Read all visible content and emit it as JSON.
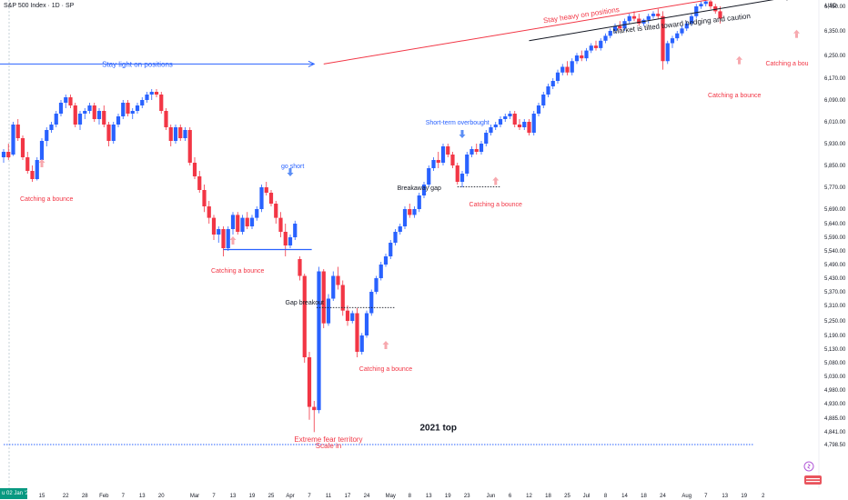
{
  "header": {
    "title": "S&P 500 Index · 1D · SP",
    "currency": "USD",
    "date_badge": "u 02 Jan '25"
  },
  "colors": {
    "up": "#2962ff",
    "down": "#f23645",
    "annot_red": "#f23645",
    "annot_blue": "#2962ff",
    "bounce_arrow": "#f7a8ae",
    "dot_line": "#2962ff"
  },
  "chart_data": {
    "type": "candlestick",
    "title": "S&P 500 Index · 1D · SP",
    "y_ticks": [
      6450,
      6350,
      6250,
      6170,
      6090,
      6010,
      5930,
      5850,
      5770,
      5690,
      5640,
      5590,
      5540,
      5490,
      5430,
      5370,
      5310,
      5250,
      5190,
      5130,
      5080,
      5030,
      4980,
      4930,
      4885,
      4841,
      4798.5
    ],
    "y_tick_labels": [
      "6,450.00",
      "6,350.00",
      "6,250.00",
      "6,170.00",
      "6,090.00",
      "6,010.00",
      "5,930.00",
      "5,850.00",
      "5,770.00",
      "5,690.00",
      "5,640.00",
      "5,590.00",
      "5,540.00",
      "5,490.00",
      "5,430.00",
      "5,370.00",
      "5,310.00",
      "5,250.00",
      "5,190.00",
      "5,130.00",
      "5,080.00",
      "5,030.00",
      "4,980.00",
      "4,930.00",
      "4,885.00",
      "4,841.00",
      "4,798.50"
    ],
    "x_ticks": [
      {
        "i": 3,
        "label": "8"
      },
      {
        "i": 8,
        "label": "15"
      },
      {
        "i": 13,
        "label": "22"
      },
      {
        "i": 17,
        "label": "28"
      },
      {
        "i": 21,
        "label": "Feb"
      },
      {
        "i": 25,
        "label": "7"
      },
      {
        "i": 29,
        "label": "13"
      },
      {
        "i": 33,
        "label": "20"
      },
      {
        "i": 40,
        "label": "Mar"
      },
      {
        "i": 44,
        "label": "7"
      },
      {
        "i": 48,
        "label": "13"
      },
      {
        "i": 52,
        "label": "19"
      },
      {
        "i": 56,
        "label": "25"
      },
      {
        "i": 60,
        "label": "Apr"
      },
      {
        "i": 64,
        "label": "7"
      },
      {
        "i": 68,
        "label": "11"
      },
      {
        "i": 72,
        "label": "17"
      },
      {
        "i": 76,
        "label": "24"
      },
      {
        "i": 81,
        "label": "May"
      },
      {
        "i": 85,
        "label": "8"
      },
      {
        "i": 89,
        "label": "13"
      },
      {
        "i": 93,
        "label": "19"
      },
      {
        "i": 97,
        "label": "23"
      },
      {
        "i": 102,
        "label": "Jun"
      },
      {
        "i": 106,
        "label": "6"
      },
      {
        "i": 110,
        "label": "12"
      },
      {
        "i": 114,
        "label": "18"
      },
      {
        "i": 118,
        "label": "25"
      },
      {
        "i": 122,
        "label": "Jul"
      },
      {
        "i": 126,
        "label": "8"
      },
      {
        "i": 130,
        "label": "14"
      },
      {
        "i": 134,
        "label": "18"
      },
      {
        "i": 138,
        "label": "24"
      },
      {
        "i": 143,
        "label": "Aug"
      },
      {
        "i": 147,
        "label": "7"
      },
      {
        "i": 151,
        "label": "13"
      },
      {
        "i": 155,
        "label": "19"
      },
      {
        "i": 159,
        "label": "2"
      }
    ],
    "candles": [
      [
        5880,
        5910,
        5860,
        5900
      ],
      [
        5900,
        5930,
        5870,
        5880
      ],
      [
        5890,
        6010,
        5885,
        6000
      ],
      [
        6000,
        6020,
        5940,
        5950
      ],
      [
        5950,
        5960,
        5870,
        5880
      ],
      [
        5880,
        5900,
        5820,
        5830
      ],
      [
        5830,
        5850,
        5790,
        5800
      ],
      [
        5800,
        5880,
        5795,
        5870
      ],
      [
        5870,
        5950,
        5860,
        5940
      ],
      [
        5940,
        5990,
        5920,
        5980
      ],
      [
        5980,
        6010,
        5970,
        6000
      ],
      [
        6000,
        6050,
        5990,
        6040
      ],
      [
        6040,
        6090,
        6030,
        6080
      ],
      [
        6080,
        6110,
        6060,
        6100
      ],
      [
        6100,
        6110,
        6060,
        6070
      ],
      [
        6070,
        6080,
        5990,
        6000
      ],
      [
        6000,
        6050,
        5980,
        6040
      ],
      [
        6040,
        6060,
        6020,
        6050
      ],
      [
        6050,
        6080,
        6040,
        6070
      ],
      [
        6070,
        6080,
        6010,
        6020
      ],
      [
        6020,
        6060,
        6000,
        6050
      ],
      [
        6050,
        6070,
        5990,
        6000
      ],
      [
        6000,
        6010,
        5920,
        5940
      ],
      [
        5940,
        6010,
        5930,
        6000
      ],
      [
        6000,
        6040,
        5990,
        6030
      ],
      [
        6030,
        6090,
        6020,
        6080
      ],
      [
        6080,
        6090,
        6030,
        6040
      ],
      [
        6040,
        6060,
        6020,
        6050
      ],
      [
        6050,
        6080,
        6040,
        6070
      ],
      [
        6070,
        6100,
        6060,
        6090
      ],
      [
        6090,
        6120,
        6080,
        6110
      ],
      [
        6110,
        6130,
        6090,
        6120
      ],
      [
        6120,
        6130,
        6100,
        6110
      ],
      [
        6110,
        6120,
        6040,
        6050
      ],
      [
        6050,
        6060,
        5980,
        5990
      ],
      [
        5990,
        6000,
        5920,
        5940
      ],
      [
        5940,
        6000,
        5930,
        5990
      ],
      [
        5990,
        6000,
        5940,
        5950
      ],
      [
        5950,
        5990,
        5940,
        5980
      ],
      [
        5980,
        5990,
        5850,
        5860
      ],
      [
        5860,
        5880,
        5800,
        5810
      ],
      [
        5810,
        5830,
        5750,
        5760
      ],
      [
        5760,
        5780,
        5680,
        5700
      ],
      [
        5700,
        5720,
        5640,
        5660
      ],
      [
        5660,
        5670,
        5580,
        5600
      ],
      [
        5600,
        5630,
        5570,
        5620
      ],
      [
        5620,
        5630,
        5520,
        5550
      ],
      [
        5550,
        5630,
        5540,
        5620
      ],
      [
        5620,
        5680,
        5600,
        5670
      ],
      [
        5670,
        5680,
        5600,
        5610
      ],
      [
        5610,
        5670,
        5600,
        5660
      ],
      [
        5660,
        5680,
        5620,
        5630
      ],
      [
        5630,
        5670,
        5620,
        5660
      ],
      [
        5660,
        5700,
        5650,
        5690
      ],
      [
        5690,
        5780,
        5680,
        5770
      ],
      [
        5770,
        5790,
        5740,
        5750
      ],
      [
        5750,
        5760,
        5700,
        5710
      ],
      [
        5710,
        5720,
        5640,
        5660
      ],
      [
        5660,
        5680,
        5590,
        5610
      ],
      [
        5610,
        5640,
        5520,
        5560
      ],
      [
        5560,
        5600,
        5550,
        5590
      ],
      [
        5590,
        5650,
        5580,
        5640
      ],
      [
        5510,
        5520,
        5420,
        5440
      ],
      [
        5440,
        5450,
        5080,
        5100
      ],
      [
        5100,
        5120,
        4880,
        4920
      ],
      [
        4920,
        4940,
        4840,
        4910
      ],
      [
        4910,
        5480,
        4900,
        5460
      ],
      [
        5460,
        5470,
        5220,
        5240
      ],
      [
        5240,
        5360,
        5230,
        5340
      ],
      [
        5340,
        5460,
        5330,
        5440
      ],
      [
        5440,
        5480,
        5380,
        5400
      ],
      [
        5400,
        5420,
        5270,
        5290
      ],
      [
        5290,
        5310,
        5230,
        5250
      ],
      [
        5250,
        5290,
        5240,
        5280
      ],
      [
        5280,
        5300,
        5100,
        5120
      ],
      [
        5120,
        5200,
        5110,
        5190
      ],
      [
        5190,
        5290,
        5180,
        5280
      ],
      [
        5280,
        5380,
        5270,
        5370
      ],
      [
        5370,
        5440,
        5360,
        5430
      ],
      [
        5430,
        5500,
        5420,
        5490
      ],
      [
        5490,
        5530,
        5480,
        5520
      ],
      [
        5520,
        5580,
        5510,
        5570
      ],
      [
        5570,
        5620,
        5560,
        5610
      ],
      [
        5610,
        5640,
        5600,
        5630
      ],
      [
        5630,
        5700,
        5620,
        5690
      ],
      [
        5690,
        5710,
        5660,
        5670
      ],
      [
        5670,
        5700,
        5660,
        5690
      ],
      [
        5690,
        5750,
        5680,
        5740
      ],
      [
        5740,
        5790,
        5730,
        5780
      ],
      [
        5780,
        5850,
        5770,
        5840
      ],
      [
        5840,
        5880,
        5830,
        5870
      ],
      [
        5870,
        5900,
        5840,
        5860
      ],
      [
        5860,
        5930,
        5850,
        5920
      ],
      [
        5920,
        5930,
        5880,
        5890
      ],
      [
        5890,
        5900,
        5840,
        5850
      ],
      [
        5850,
        5860,
        5780,
        5790
      ],
      [
        5790,
        5830,
        5770,
        5820
      ],
      [
        5820,
        5900,
        5810,
        5890
      ],
      [
        5890,
        5920,
        5880,
        5910
      ],
      [
        5910,
        5930,
        5890,
        5900
      ],
      [
        5900,
        5940,
        5890,
        5930
      ],
      [
        5930,
        5980,
        5920,
        5970
      ],
      [
        5970,
        6000,
        5960,
        5990
      ],
      [
        5990,
        6010,
        5980,
        6000
      ],
      [
        6000,
        6030,
        5990,
        6020
      ],
      [
        6020,
        6040,
        6010,
        6030
      ],
      [
        6030,
        6050,
        6020,
        6040
      ],
      [
        6040,
        6050,
        5990,
        6000
      ],
      [
        6000,
        6020,
        5980,
        5990
      ],
      [
        5990,
        6020,
        5980,
        6010
      ],
      [
        6010,
        6020,
        5960,
        5970
      ],
      [
        5970,
        6050,
        5960,
        6040
      ],
      [
        6040,
        6080,
        6030,
        6070
      ],
      [
        6070,
        6120,
        6060,
        6110
      ],
      [
        6110,
        6150,
        6100,
        6140
      ],
      [
        6140,
        6170,
        6130,
        6160
      ],
      [
        6160,
        6200,
        6150,
        6190
      ],
      [
        6190,
        6220,
        6180,
        6210
      ],
      [
        6210,
        6230,
        6180,
        6190
      ],
      [
        6190,
        6240,
        6180,
        6230
      ],
      [
        6230,
        6260,
        6220,
        6250
      ],
      [
        6250,
        6270,
        6230,
        6240
      ],
      [
        6240,
        6280,
        6230,
        6270
      ],
      [
        6270,
        6300,
        6260,
        6290
      ],
      [
        6290,
        6310,
        6270,
        6280
      ],
      [
        6280,
        6320,
        6270,
        6310
      ],
      [
        6310,
        6340,
        6300,
        6330
      ],
      [
        6330,
        6360,
        6320,
        6350
      ],
      [
        6350,
        6380,
        6340,
        6370
      ],
      [
        6370,
        6390,
        6350,
        6360
      ],
      [
        6360,
        6400,
        6350,
        6390
      ],
      [
        6390,
        6420,
        6380,
        6410
      ],
      [
        6410,
        6430,
        6390,
        6400
      ],
      [
        6400,
        6420,
        6370,
        6380
      ],
      [
        6380,
        6400,
        6370,
        6395
      ],
      [
        6395,
        6420,
        6380,
        6410
      ],
      [
        6410,
        6430,
        6400,
        6420
      ],
      [
        6420,
        6440,
        6400,
        6410
      ],
      [
        6410,
        6430,
        6200,
        6230
      ],
      [
        6230,
        6310,
        6220,
        6300
      ],
      [
        6300,
        6330,
        6280,
        6320
      ],
      [
        6320,
        6350,
        6310,
        6340
      ],
      [
        6340,
        6370,
        6330,
        6360
      ],
      [
        6360,
        6390,
        6350,
        6380
      ],
      [
        6380,
        6420,
        6370,
        6410
      ],
      [
        6410,
        6460,
        6400,
        6450
      ],
      [
        6450,
        6470,
        6440,
        6460
      ],
      [
        6460,
        6480,
        6450,
        6470
      ],
      [
        6470,
        6480,
        6440,
        6450
      ],
      [
        6450,
        6460,
        6420,
        6430
      ],
      [
        6430,
        6450,
        6380,
        6400
      ]
    ],
    "annotations": {
      "texts": [
        {
          "name": "stay-light-label",
          "text": "Stay light on positions",
          "i": 28,
          "y": 6210,
          "color": "blue",
          "size": 8
        },
        {
          "name": "stay-heavy-label",
          "text": "Stay heavy on positions",
          "i": 121,
          "y": 6405,
          "color": "red",
          "size": 8,
          "rotate": -8.5
        },
        {
          "name": "market-tilted-label",
          "text": "Market is tilted toward hedging and caution",
          "i": 142,
          "y": 6370,
          "color": "black",
          "size": 8,
          "rotate": -6.5
        },
        {
          "name": "go-short-label",
          "text": "go short",
          "i": 60.5,
          "y": 5840,
          "color": "blue",
          "size": 7
        },
        {
          "name": "short-term-overbought-label",
          "text": "Short-term overbought",
          "i": 95,
          "y": 6000,
          "color": "blue",
          "size": 7
        },
        {
          "name": "breakaway-gap-label",
          "text": "Breakaway gap",
          "i": 87,
          "y": 5760,
          "color": "black",
          "size": 7
        },
        {
          "name": "gap-breakout-label",
          "text": "Gap breakout",
          "i": 63,
          "y": 5315,
          "color": "black",
          "size": 7
        },
        {
          "name": "catching-bounce-1",
          "text": "Catching a bounce",
          "i": 9,
          "y": 5720,
          "color": "red",
          "size": 7
        },
        {
          "name": "catching-bounce-2",
          "text": "Catching a bounce",
          "i": 49,
          "y": 5455,
          "color": "red",
          "size": 7
        },
        {
          "name": "catching-bounce-3",
          "text": "Catching a bounce",
          "i": 80,
          "y": 5050,
          "color": "red",
          "size": 7
        },
        {
          "name": "catching-bounce-4",
          "text": "Catching a bounce",
          "i": 103,
          "y": 5700,
          "color": "red",
          "size": 7
        },
        {
          "name": "catching-bounce-5",
          "text": "Catching a bounce",
          "i": 153,
          "y": 6100,
          "color": "red",
          "size": 7
        },
        {
          "name": "catching-bounce-6",
          "text": "Catching a bou",
          "i": 164,
          "y": 6215,
          "color": "red",
          "size": 7
        },
        {
          "name": "extreme-fear-label",
          "text": "Extreme fear territory",
          "i": 68,
          "y": 4808,
          "color": "red",
          "size": 8
        },
        {
          "name": "scale-in-label",
          "text": "Scale in",
          "i": 68,
          "y": 4786,
          "color": "red",
          "size": 8
        },
        {
          "name": "top-2021-label",
          "text": "2021 top",
          "i": 91,
          "y": 4846,
          "color": "black",
          "size": 10,
          "bold": true
        }
      ],
      "bounce_arrows": [
        [
          8,
          5860
        ],
        [
          48,
          5580
        ],
        [
          80,
          5150
        ],
        [
          103,
          5795
        ],
        [
          154,
          6235
        ],
        [
          166,
          6340
        ]
      ],
      "signal_arrows_down": [
        [
          60,
          5820
        ],
        [
          96,
          5960
        ]
      ],
      "horizontal_lines": [
        {
          "name": "support-line",
          "i1": 46,
          "i2": 64.5,
          "y": 5545,
          "style": "solid",
          "color": "blue"
        },
        {
          "name": "breakaway-gap-line",
          "i1": 95,
          "i2": 104,
          "y": 5772,
          "style": "dotted",
          "color": "black"
        },
        {
          "name": "gap-breakout-line",
          "i1": 65.5,
          "i2": 82,
          "y": 5302,
          "style": "dotted",
          "color": "black"
        },
        {
          "name": "top-2021-line",
          "i1": 0,
          "i2": 157,
          "y": 4798.5,
          "style": "dotted",
          "color": "blue"
        }
      ],
      "arrow_lines": [
        {
          "name": "stay-light-arrow",
          "i1": -1,
          "y1": 6220,
          "i2": 65,
          "y2": 6220,
          "color": "blue"
        },
        {
          "name": "stay-heavy-arrow",
          "i1": 67,
          "y1": 6220,
          "i2": 164,
          "y2": 6530,
          "color": "red"
        },
        {
          "name": "market-tilted-arrow",
          "i1": 110,
          "y1": 6310,
          "i2": 165,
          "y2": 6490,
          "color": "black"
        }
      ]
    }
  }
}
